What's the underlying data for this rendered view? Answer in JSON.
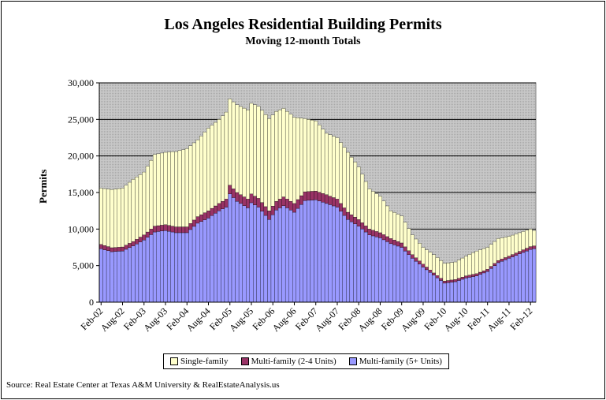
{
  "chart_data": {
    "type": "bar",
    "stacked": true,
    "title": "Los Angeles Residential Building Permits",
    "subtitle": "Moving 12-month Totals",
    "ylabel": "Permits",
    "xlabel": "",
    "ylim": [
      0,
      30000
    ],
    "yticks": [
      "0",
      "5,000",
      "10,000",
      "15,000",
      "20,000",
      "25,000",
      "30,000"
    ],
    "xticks": [
      "Feb-02",
      "Aug-02",
      "Feb-03",
      "Aug-03",
      "Feb-04",
      "Aug-04",
      "Feb-05",
      "Aug-05",
      "Feb-06",
      "Aug-06",
      "Feb-07",
      "Aug-07",
      "Feb-08",
      "Aug-08",
      "Feb-09",
      "Aug-09",
      "Feb-10",
      "Aug-10",
      "Feb-11",
      "Aug-11",
      "Feb-12"
    ],
    "grid": true,
    "legend_position": "bottom",
    "colors": {
      "single": "#ffffcc",
      "multi24": "#993366",
      "multi5": "#9999ff",
      "plot_bg": "#c0c0c0"
    },
    "anchors": [
      {
        "m": 0,
        "t": 15600,
        "m5": 7300,
        "m24": 600
      },
      {
        "m": 3,
        "t": 15400,
        "m5": 6900,
        "m24": 550
      },
      {
        "m": 6,
        "t": 15600,
        "m5": 7000,
        "m24": 550
      },
      {
        "m": 9,
        "t": 16800,
        "m5": 7700,
        "m24": 600
      },
      {
        "m": 12,
        "t": 17800,
        "m5": 8500,
        "m24": 700
      },
      {
        "m": 15,
        "t": 20200,
        "m5": 9600,
        "m24": 800
      },
      {
        "m": 18,
        "t": 20500,
        "m5": 9800,
        "m24": 800
      },
      {
        "m": 21,
        "t": 20600,
        "m5": 9500,
        "m24": 800
      },
      {
        "m": 24,
        "t": 21000,
        "m5": 9500,
        "m24": 800
      },
      {
        "m": 27,
        "t": 22200,
        "m5": 10800,
        "m24": 900
      },
      {
        "m": 30,
        "t": 23800,
        "m5": 11500,
        "m24": 1000
      },
      {
        "m": 33,
        "t": 25000,
        "m5": 12500,
        "m24": 1000
      },
      {
        "m": 35,
        "t": 26000,
        "m5": 13000,
        "m24": 1100
      },
      {
        "m": 36,
        "t": 27800,
        "m5": 14800,
        "m24": 1200
      },
      {
        "m": 38,
        "t": 27000,
        "m5": 13800,
        "m24": 1200
      },
      {
        "m": 41,
        "t": 26300,
        "m5": 12900,
        "m24": 1200
      },
      {
        "m": 42,
        "t": 27200,
        "m5": 13600,
        "m24": 1200
      },
      {
        "m": 44,
        "t": 26800,
        "m5": 13000,
        "m24": 1200
      },
      {
        "m": 47,
        "t": 25100,
        "m5": 11300,
        "m24": 1200
      },
      {
        "m": 49,
        "t": 26100,
        "m5": 12600,
        "m24": 1200
      },
      {
        "m": 51,
        "t": 26500,
        "m5": 13200,
        "m24": 1200
      },
      {
        "m": 54,
        "t": 25300,
        "m5": 12300,
        "m24": 1200
      },
      {
        "m": 57,
        "t": 25100,
        "m5": 13900,
        "m24": 1200
      },
      {
        "m": 60,
        "t": 24800,
        "m5": 14000,
        "m24": 1200
      },
      {
        "m": 63,
        "t": 23100,
        "m5": 13500,
        "m24": 1200
      },
      {
        "m": 66,
        "t": 22500,
        "m5": 13000,
        "m24": 1100
      },
      {
        "m": 69,
        "t": 20500,
        "m5": 11300,
        "m24": 1000
      },
      {
        "m": 72,
        "t": 18500,
        "m5": 10400,
        "m24": 900
      },
      {
        "m": 75,
        "t": 15500,
        "m5": 9200,
        "m24": 800
      },
      {
        "m": 78,
        "t": 14500,
        "m5": 8800,
        "m24": 700
      },
      {
        "m": 81,
        "t": 12500,
        "m5": 8000,
        "m24": 700
      },
      {
        "m": 84,
        "t": 11800,
        "m5": 7500,
        "m24": 600
      },
      {
        "m": 87,
        "t": 9200,
        "m5": 6000,
        "m24": 500
      },
      {
        "m": 90,
        "t": 7500,
        "m5": 4800,
        "m24": 400
      },
      {
        "m": 93,
        "t": 6500,
        "m5": 3700,
        "m24": 300
      },
      {
        "m": 96,
        "t": 5300,
        "m5": 2600,
        "m24": 300
      },
      {
        "m": 99,
        "t": 5500,
        "m5": 2800,
        "m24": 300
      },
      {
        "m": 102,
        "t": 6300,
        "m5": 3300,
        "m24": 300
      },
      {
        "m": 105,
        "t": 7000,
        "m5": 3600,
        "m24": 300
      },
      {
        "m": 108,
        "t": 7500,
        "m5": 4200,
        "m24": 300
      },
      {
        "m": 111,
        "t": 8700,
        "m5": 5400,
        "m24": 300
      },
      {
        "m": 114,
        "t": 9000,
        "m5": 6000,
        "m24": 300
      },
      {
        "m": 117,
        "t": 9500,
        "m5": 6600,
        "m24": 350
      },
      {
        "m": 120,
        "t": 10000,
        "m5": 7200,
        "m24": 400
      },
      {
        "m": 121,
        "t": 9800,
        "m5": 7300,
        "m24": 400
      }
    ]
  },
  "legend": {
    "single": "Single-family",
    "multi24": "Multi-family (2-4 Units)",
    "multi5": "Multi-family (5+ Units)"
  },
  "source": "Source: Real Estate Center at Texas A&M University & RealEstateAnalysis.us"
}
